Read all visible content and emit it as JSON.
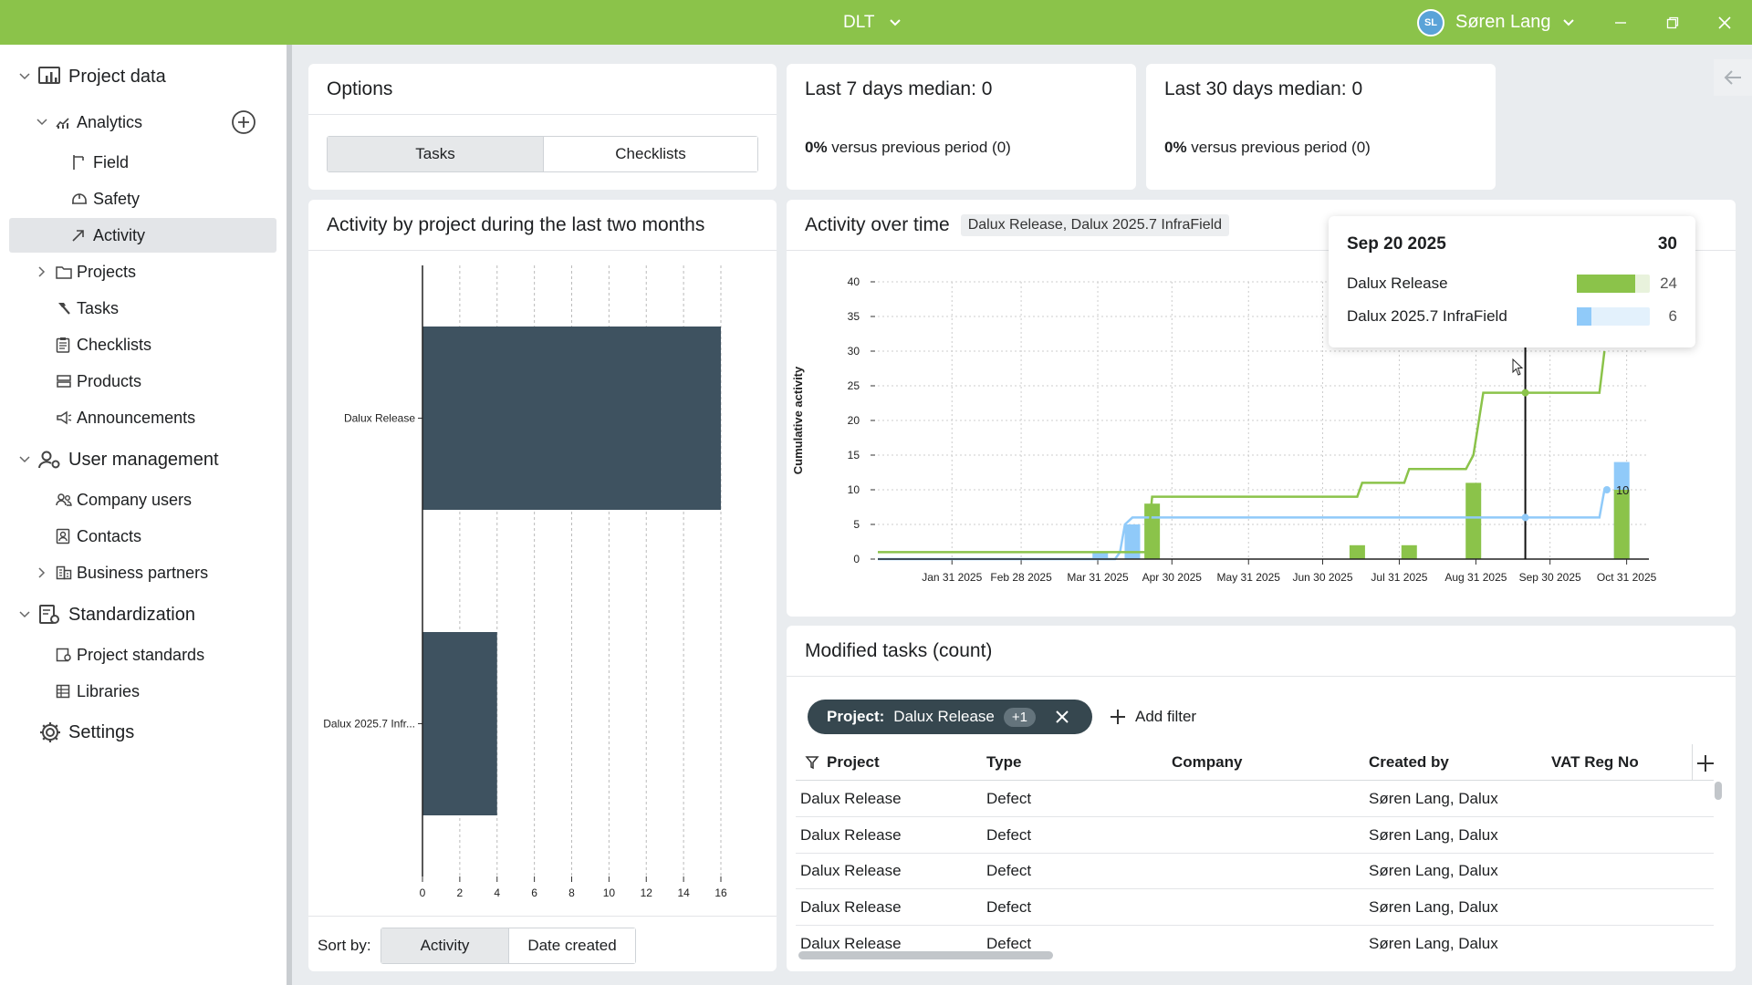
{
  "titlebar": {
    "app_title": "DLT",
    "user_initials": "SL",
    "user_name": "Søren Lang"
  },
  "sidebar": {
    "items": [
      {
        "label": "Project data",
        "icon": "chart-board-icon",
        "level": 0
      },
      {
        "label": "Analytics",
        "icon": "analytics-icon",
        "level": 1
      },
      {
        "label": "Field",
        "icon": "field-icon",
        "level": 2
      },
      {
        "label": "Safety",
        "icon": "safety-helmet-icon",
        "level": 2
      },
      {
        "label": "Activity",
        "icon": "activity-arrow-icon",
        "level": 2,
        "active": true
      },
      {
        "label": "Projects",
        "icon": "folder-icon",
        "level": 1
      },
      {
        "label": "Tasks",
        "icon": "hammer-icon",
        "level": 1
      },
      {
        "label": "Checklists",
        "icon": "clipboard-icon",
        "level": 1
      },
      {
        "label": "Products",
        "icon": "products-icon",
        "level": 1
      },
      {
        "label": "Announcements",
        "icon": "megaphone-icon",
        "level": 1
      },
      {
        "label": "User management",
        "icon": "user-gear-icon",
        "level": 0
      },
      {
        "label": "Company users",
        "icon": "users-icon",
        "level": 1
      },
      {
        "label": "Contacts",
        "icon": "contact-card-icon",
        "level": 1
      },
      {
        "label": "Business partners",
        "icon": "building-icon",
        "level": 1
      },
      {
        "label": "Standardization",
        "icon": "standards-icon",
        "level": 0
      },
      {
        "label": "Project standards",
        "icon": "project-standard-icon",
        "level": 1
      },
      {
        "label": "Libraries",
        "icon": "library-icon",
        "level": 1
      },
      {
        "label": "Settings",
        "icon": "gear-icon",
        "level": 0
      }
    ]
  },
  "options": {
    "title": "Options",
    "tabs": [
      "Tasks",
      "Checklists"
    ],
    "selected_tab": "Tasks"
  },
  "stats": {
    "last7": {
      "title": "Last 7 days median: 0",
      "pct": "0%",
      "text": " versus previous period (0)"
    },
    "last30": {
      "title": "Last 30 days median: 0",
      "pct": "0%",
      "text": " versus previous period (0)"
    }
  },
  "activity_by_project": {
    "title": "Activity by project during the last two months",
    "sort_label": "Sort by:",
    "sort_options": [
      "Activity",
      "Date created"
    ],
    "selected_sort": "Activity"
  },
  "activity_over_time": {
    "title": "Activity over time",
    "chip": "Dalux Release, Dalux 2025.7 InfraField"
  },
  "tooltip": {
    "date": "Sep 20 2025",
    "total": "30",
    "rows": [
      {
        "name": "Dalux Release",
        "value": "24",
        "fraction": 0.8,
        "color": "#8bc34a"
      },
      {
        "name": "Dalux 2025.7 InfraField",
        "value": "6",
        "fraction": 0.2,
        "color": "#90caf9"
      }
    ]
  },
  "hover_label": "10",
  "chart_data": [
    {
      "type": "bar",
      "orientation": "horizontal",
      "categories": [
        "Dalux Release",
        "Dalux 2025.7 Infr..."
      ],
      "values": [
        16,
        4
      ],
      "title": "",
      "xlim": [
        0,
        16
      ],
      "xticks": [
        0,
        2,
        4,
        6,
        8,
        10,
        12,
        14,
        16
      ],
      "grid": true,
      "color": "#3e5260"
    },
    {
      "type": "line",
      "title": "",
      "ylabel": "Cumulative activity",
      "ylim": [
        0,
        40
      ],
      "yticks": [
        0,
        5,
        10,
        15,
        20,
        25,
        30,
        35,
        40
      ],
      "xticks": [
        "Jan 31 2025",
        "Feb 28 2025",
        "Mar 31 2025",
        "Apr 30 2025",
        "May 31 2025",
        "Jun 30 2025",
        "Jul 31 2025",
        "Aug 31 2025",
        "Sep 30 2025",
        "Oct 31 2025"
      ],
      "x_range": [
        "2025-01-01",
        "2025-11-09"
      ],
      "grid": true,
      "series": [
        {
          "name": "Dalux Release",
          "color": "#8bc34a",
          "line": [
            [
              "2025-01-01",
              1
            ],
            [
              "2025-04-20",
              1
            ],
            [
              "2025-04-22",
              9
            ],
            [
              "2025-07-14",
              9
            ],
            [
              "2025-07-16",
              11
            ],
            [
              "2025-08-02",
              11
            ],
            [
              "2025-08-04",
              13
            ],
            [
              "2025-08-27",
              13
            ],
            [
              "2025-08-30",
              15
            ],
            [
              "2025-09-03",
              24
            ],
            [
              "2025-10-20",
              24
            ],
            [
              "2025-10-22",
              30
            ]
          ],
          "bars": [
            [
              "2025-04-22",
              8
            ],
            [
              "2025-07-14",
              2
            ],
            [
              "2025-08-04",
              2
            ],
            [
              "2025-08-30",
              11
            ],
            [
              "2025-10-29",
              10
            ]
          ]
        },
        {
          "name": "Dalux 2025.7 InfraField",
          "color": "#90caf9",
          "line": [
            [
              "2025-01-01",
              0
            ],
            [
              "2025-04-07",
              0
            ],
            [
              "2025-04-09",
              1
            ],
            [
              "2025-04-11",
              5
            ],
            [
              "2025-04-14",
              6
            ],
            [
              "2025-10-20",
              6
            ],
            [
              "2025-10-22",
              10
            ]
          ],
          "bars": [
            [
              "2025-04-01",
              1
            ],
            [
              "2025-04-14",
              5
            ],
            [
              "2025-10-29",
              14
            ]
          ]
        }
      ],
      "hover_date": "2025-09-20"
    }
  ],
  "modified_tasks": {
    "title": "Modified tasks (count)",
    "filter_label": "Project:",
    "filter_value": "Dalux Release",
    "filter_more": "+1",
    "add_filter": "Add filter",
    "columns": [
      "Project",
      "Type",
      "Company",
      "Created by",
      "VAT Reg No"
    ],
    "rows": [
      [
        "Dalux Release",
        "Defect",
        "",
        "Søren Lang, Dalux",
        ""
      ],
      [
        "Dalux Release",
        "Defect",
        "",
        "Søren Lang, Dalux",
        ""
      ],
      [
        "Dalux Release",
        "Defect",
        "",
        "Søren Lang, Dalux",
        ""
      ],
      [
        "Dalux Release",
        "Defect",
        "",
        "Søren Lang, Dalux",
        ""
      ],
      [
        "Dalux Release",
        "Defect",
        "",
        "Søren Lang, Dalux",
        ""
      ]
    ]
  }
}
